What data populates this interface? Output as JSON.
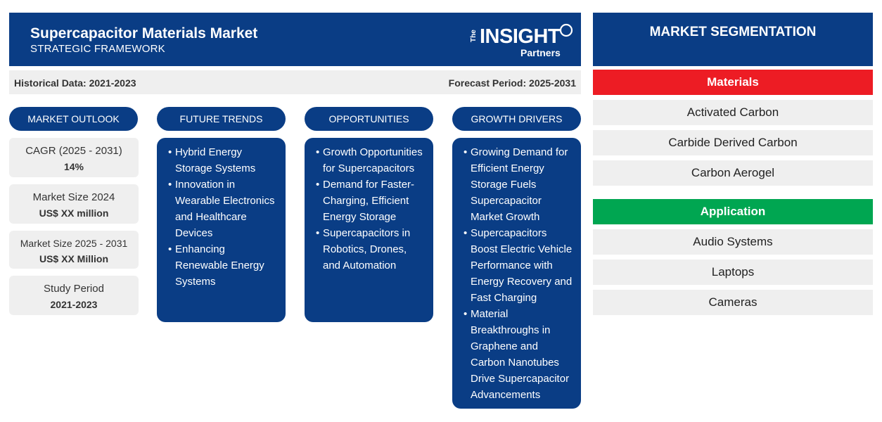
{
  "header": {
    "title": "Supercapacitor Materials Market",
    "subtitle": "STRATEGIC FRAMEWORK",
    "logo": {
      "the": "The",
      "insight": "INSIGHT",
      "partners": "Partners"
    }
  },
  "period": {
    "historical": "Historical Data: 2021-2023",
    "forecast": "Forecast Period: 2025-2031"
  },
  "columns": {
    "outlook": "MARKET OUTLOOK",
    "trends": "FUTURE TRENDS",
    "opportunities": "OPPORTUNITIES",
    "drivers": "GROWTH DRIVERS"
  },
  "outlook": [
    {
      "label": "CAGR (2025 - 2031)",
      "value": "14%"
    },
    {
      "label": "Market Size 2024",
      "value": "US$ XX million"
    },
    {
      "label": "Market Size 2025 - 2031",
      "value": "US$ XX Million"
    },
    {
      "label": "Study Period",
      "value": "2021-2023"
    }
  ],
  "trends": [
    "Hybrid Energy Storage Systems",
    "Innovation in Wearable Electronics and Healthcare Devices",
    "Enhancing Renewable Energy Systems"
  ],
  "opportunities": [
    "Growth Opportunities for Supercapacitors",
    "Demand for Faster-Charging, Efficient Energy Storage",
    "Supercapacitors in Robotics, Drones, and Automation"
  ],
  "drivers": [
    "Growing Demand for Efficient Energy Storage Fuels Supercapacitor Market Growth",
    "Supercapacitors Boost Electric Vehicle Performance with Energy Recovery and Fast Charging",
    "Material Breakthroughs in Graphene and Carbon Nanotubes Drive Supercapacitor Advancements"
  ],
  "segmentation": {
    "title": "MARKET SEGMENTATION",
    "materials": {
      "label": "Materials",
      "color": "#ed1c24",
      "items": [
        "Activated Carbon",
        "Carbide Derived Carbon",
        "Carbon Aerogel"
      ]
    },
    "application": {
      "label": "Application",
      "color": "#00a651",
      "items": [
        "Audio Systems",
        "Laptops",
        "Cameras"
      ]
    }
  },
  "colors": {
    "navy": "#0a3d85",
    "light": "#efefef"
  }
}
